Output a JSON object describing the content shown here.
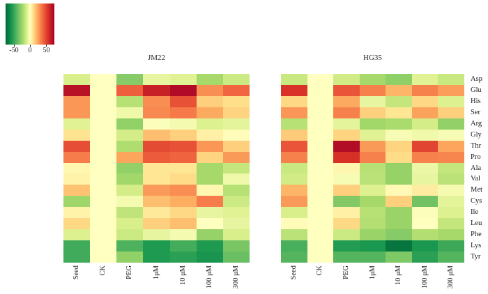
{
  "figure": {
    "background": "#ffffff",
    "text_color": "#1a1a1a"
  },
  "chart_data": {
    "type": "heatmap",
    "title": "",
    "panels": [
      {
        "title": "JM22",
        "values": [
          [
            -10,
            0,
            -30,
            -6,
            -8,
            -22,
            -13
          ],
          [
            68,
            0,
            42,
            62,
            71,
            30,
            40
          ],
          [
            28,
            0,
            -18,
            30,
            46,
            14,
            10
          ],
          [
            28,
            0,
            -4,
            31,
            35,
            23,
            13
          ],
          [
            -8,
            0,
            -27,
            -1,
            -3,
            -9,
            -7
          ],
          [
            9,
            0,
            -11,
            18,
            14,
            5,
            1
          ],
          [
            47,
            0,
            -20,
            48,
            46,
            28,
            14
          ],
          [
            34,
            0,
            24,
            43,
            41,
            13,
            27
          ],
          [
            3,
            0,
            -27,
            8,
            8,
            -22,
            -15
          ],
          [
            4,
            0,
            -23,
            8,
            11,
            -22,
            -4
          ],
          [
            17,
            0,
            -11,
            27,
            30,
            3,
            -18
          ],
          [
            -24,
            0,
            -3,
            18,
            22,
            34,
            -13
          ],
          [
            4,
            0,
            -16,
            7,
            12,
            -6,
            -8
          ],
          [
            12,
            0,
            -10,
            14,
            18,
            0,
            -6
          ],
          [
            -9,
            0,
            -13,
            -6,
            -3,
            -26,
            -10
          ],
          [
            -47,
            0,
            -44,
            -55,
            -46,
            -55,
            -33
          ],
          [
            -47,
            0,
            -27,
            -55,
            -52,
            -57,
            -37
          ]
        ]
      },
      {
        "title": "HG35",
        "values": [
          [
            -14,
            0,
            -12,
            -22,
            -28,
            -8,
            -14
          ],
          [
            55,
            0,
            45,
            33,
            20,
            33,
            26
          ],
          [
            12,
            0,
            23,
            -6,
            -15,
            12,
            -9
          ],
          [
            28,
            0,
            33,
            14,
            8,
            25,
            14
          ],
          [
            -18,
            0,
            -7,
            -23,
            -21,
            -11,
            -27
          ],
          [
            15,
            0,
            13,
            -8,
            -2,
            -4,
            -2
          ],
          [
            45,
            0,
            70,
            27,
            13,
            50,
            24
          ],
          [
            33,
            0,
            56,
            33,
            11,
            33,
            32
          ],
          [
            -14,
            0,
            3,
            -18,
            -26,
            -5,
            -15
          ],
          [
            -12,
            0,
            -2,
            -17,
            -26,
            -6,
            -17
          ],
          [
            20,
            0,
            14,
            -9,
            2,
            6,
            -3
          ],
          [
            27,
            0,
            -31,
            -22,
            14,
            -35,
            -7
          ],
          [
            -10,
            0,
            5,
            -18,
            -25,
            -1,
            -9
          ],
          [
            1,
            0,
            12,
            -19,
            -25,
            0,
            -15
          ],
          [
            -17,
            0,
            -13,
            -25,
            -30,
            -19,
            -22
          ],
          [
            -45,
            0,
            -54,
            -56,
            -70,
            -56,
            -48
          ],
          [
            -42,
            0,
            -42,
            -42,
            -32,
            -52,
            -42
          ]
        ]
      }
    ],
    "rows": [
      "Asp",
      "Glu",
      "His",
      "Ser",
      "Arg",
      "Gly",
      "Thr",
      "Pro",
      "Ala",
      "Val",
      "Met",
      "Cys",
      "Ile",
      "Leu",
      "Phe",
      "Lys",
      "Tyr"
    ],
    "columns": [
      "Seed",
      "CK",
      "PEG",
      "1μM",
      "10 μM",
      "100 μM",
      "300 μM"
    ],
    "colormap": {
      "name": "RdYlGn-reversed",
      "domain": [
        -75,
        75
      ],
      "stops": [
        [
          -75,
          "#006837"
        ],
        [
          -56,
          "#1a9850"
        ],
        [
          -38,
          "#66bd63"
        ],
        [
          -22,
          "#a6d96a"
        ],
        [
          -10,
          "#d9ef8b"
        ],
        [
          0,
          "#ffffbf"
        ],
        [
          10,
          "#fee08b"
        ],
        [
          22,
          "#fdae61"
        ],
        [
          38,
          "#f46d43"
        ],
        [
          56,
          "#d73027"
        ],
        [
          75,
          "#a50026"
        ]
      ]
    },
    "legend": {
      "tick_labels": [
        "-50",
        "0",
        "50"
      ],
      "tick_values": [
        -50,
        0,
        50
      ],
      "position": "top-left",
      "orientation": "horizontal"
    },
    "grid": false
  }
}
